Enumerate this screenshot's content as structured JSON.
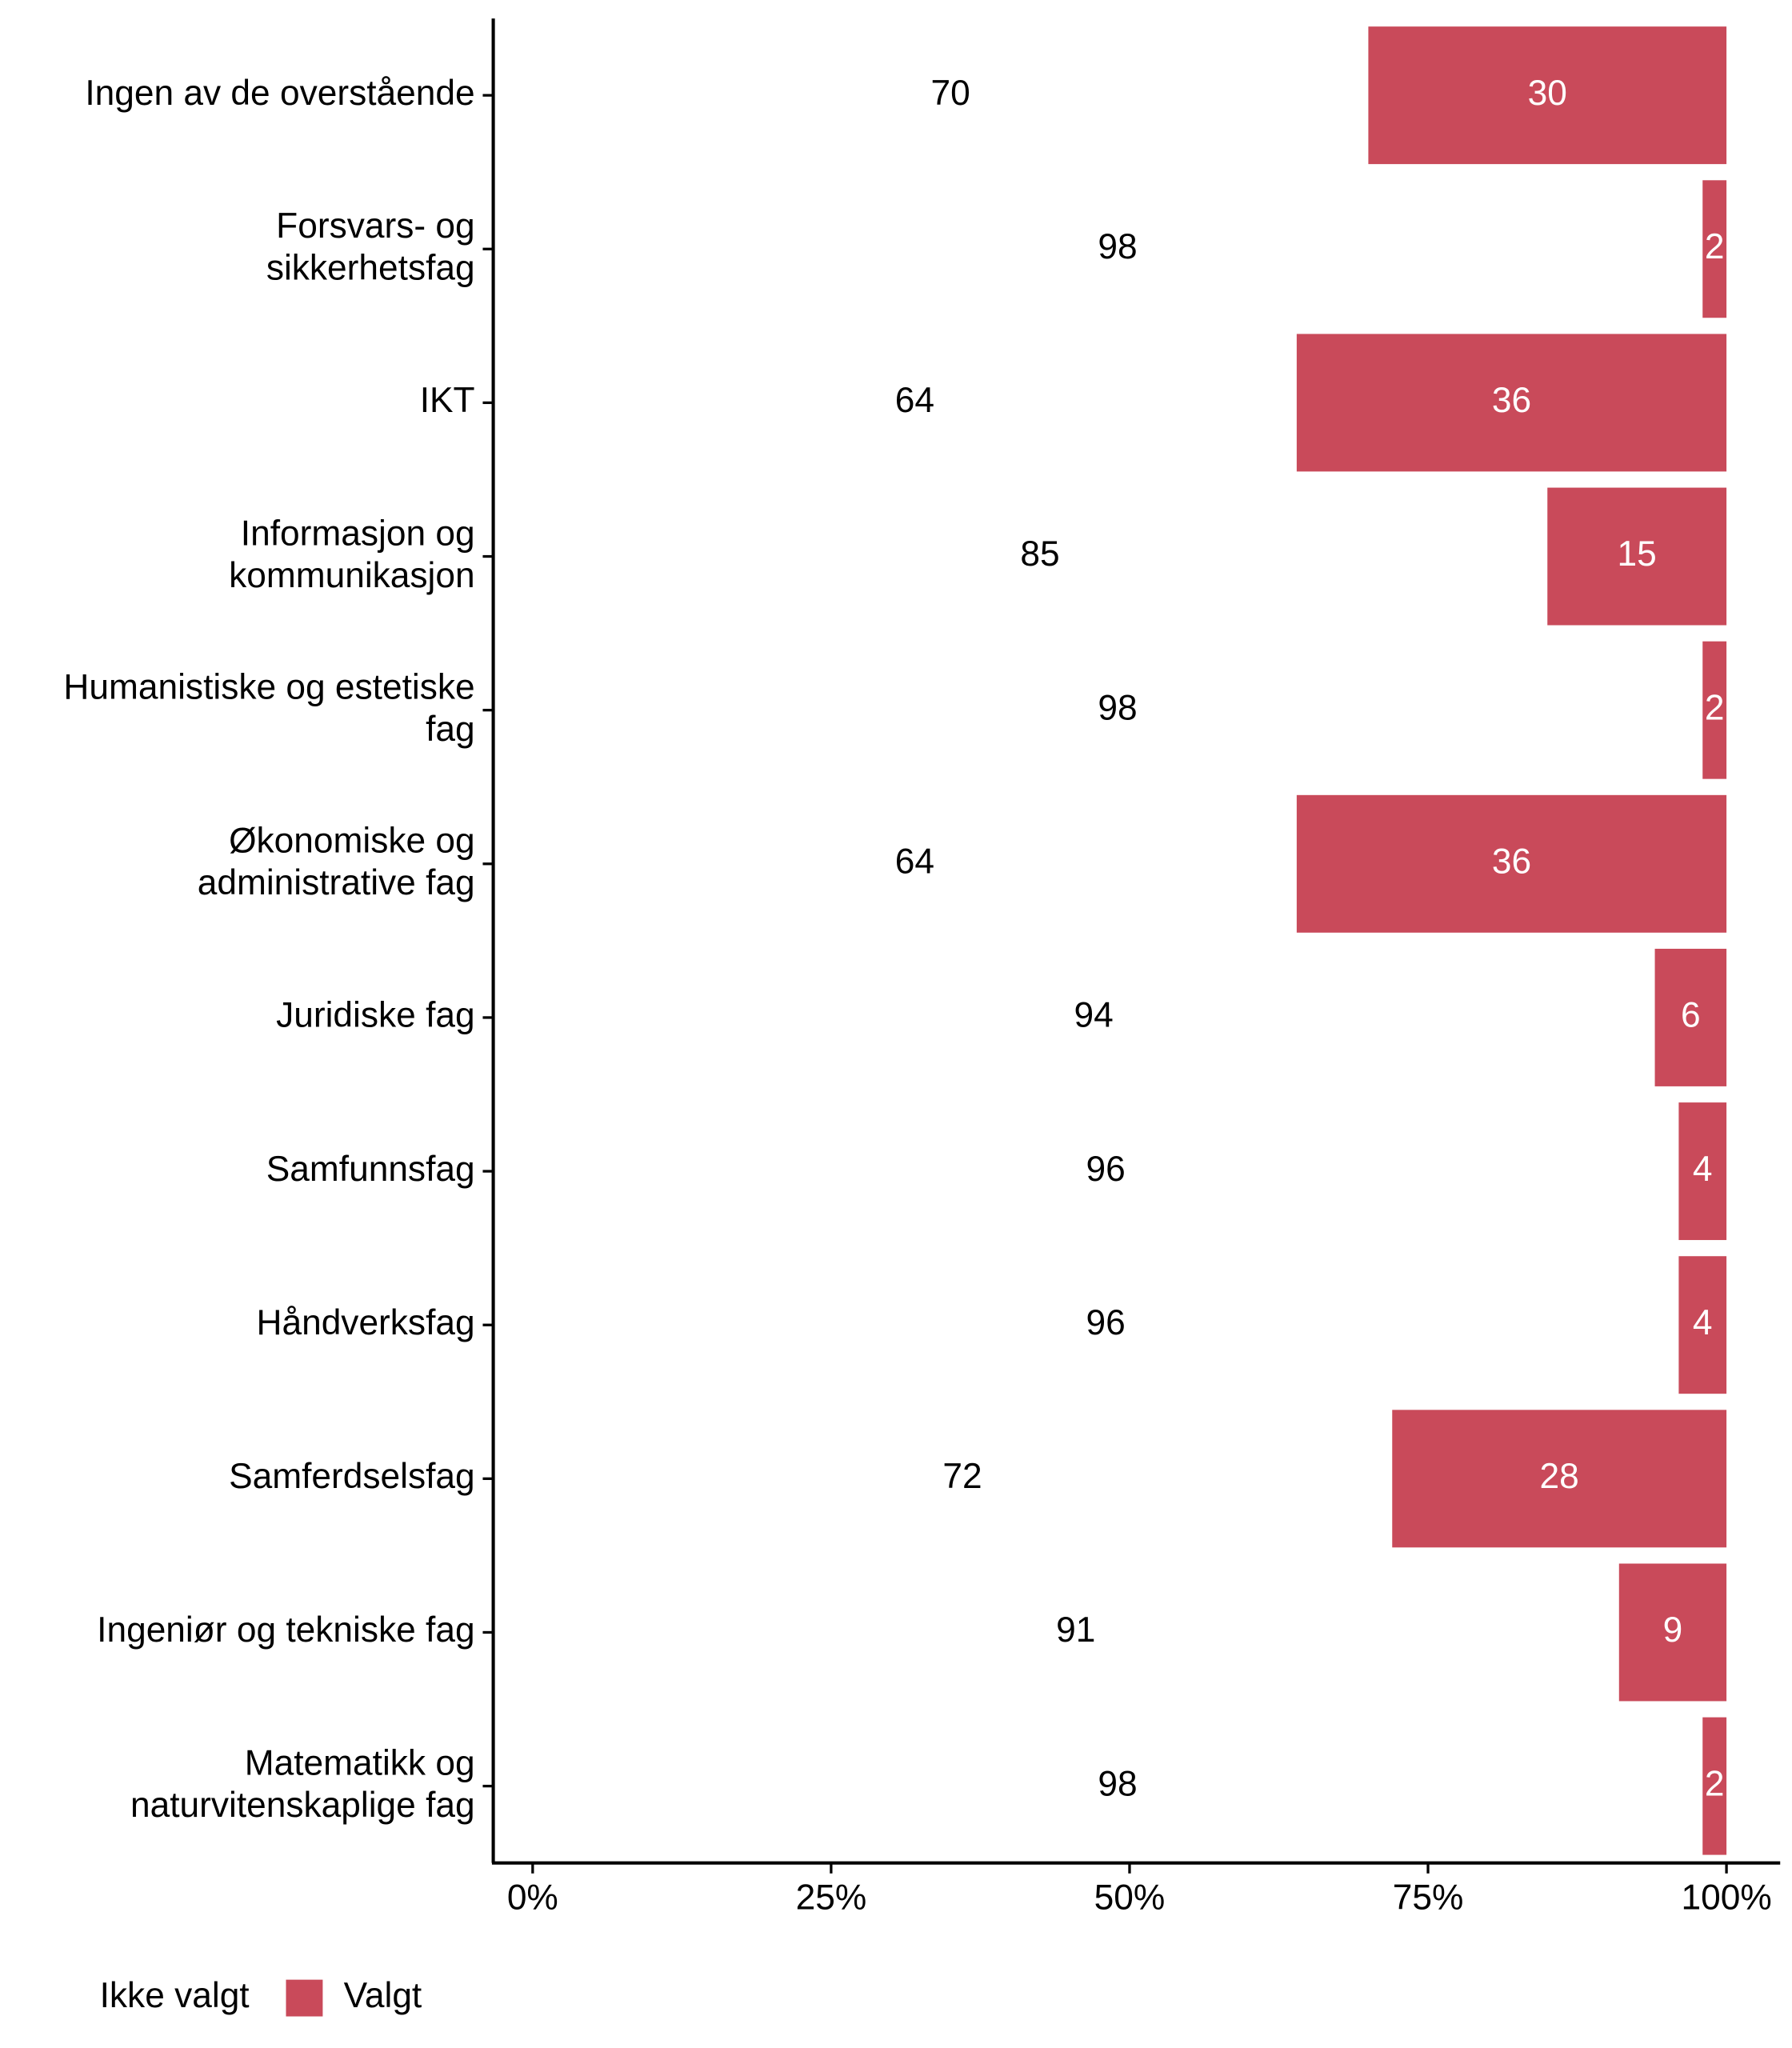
{
  "chart_data": {
    "type": "stacked_bar_horizontal",
    "categories": [
      "Ingen av de overstående",
      "Forsvars- og\nsikkerhetsfag",
      "IKT",
      "Informasjon og\nkommunikasjon",
      "Humanistiske og estetiske\nfag",
      "Økonomiske og\nadministrative fag",
      "Juridiske fag",
      "Samfunnsfag",
      "Håndverksfag",
      "Samferdselsfag",
      "Ingeniør og tekniske fag",
      "Matematikk og\nnaturvitenskaplige fag"
    ],
    "series": [
      {
        "name": "Ikke valgt",
        "color": "#ffffff",
        "label_color": "#000000",
        "values": [
          70,
          98,
          64,
          85,
          98,
          64,
          94,
          96,
          96,
          72,
          91,
          98
        ]
      },
      {
        "name": "Valgt",
        "color": "#c94a5a",
        "label_color": "#ffffff",
        "values": [
          30,
          2,
          36,
          15,
          2,
          36,
          6,
          4,
          4,
          28,
          9,
          2
        ]
      }
    ],
    "xlim": [
      -3.3,
      104.5
    ],
    "xticks": [
      {
        "value": 0,
        "label": "0%"
      },
      {
        "value": 25,
        "label": "25%"
      },
      {
        "value": 50,
        "label": "50%"
      },
      {
        "value": 75,
        "label": "75%"
      },
      {
        "value": 100,
        "label": "100%"
      }
    ],
    "legend_position": "bottom-left"
  }
}
